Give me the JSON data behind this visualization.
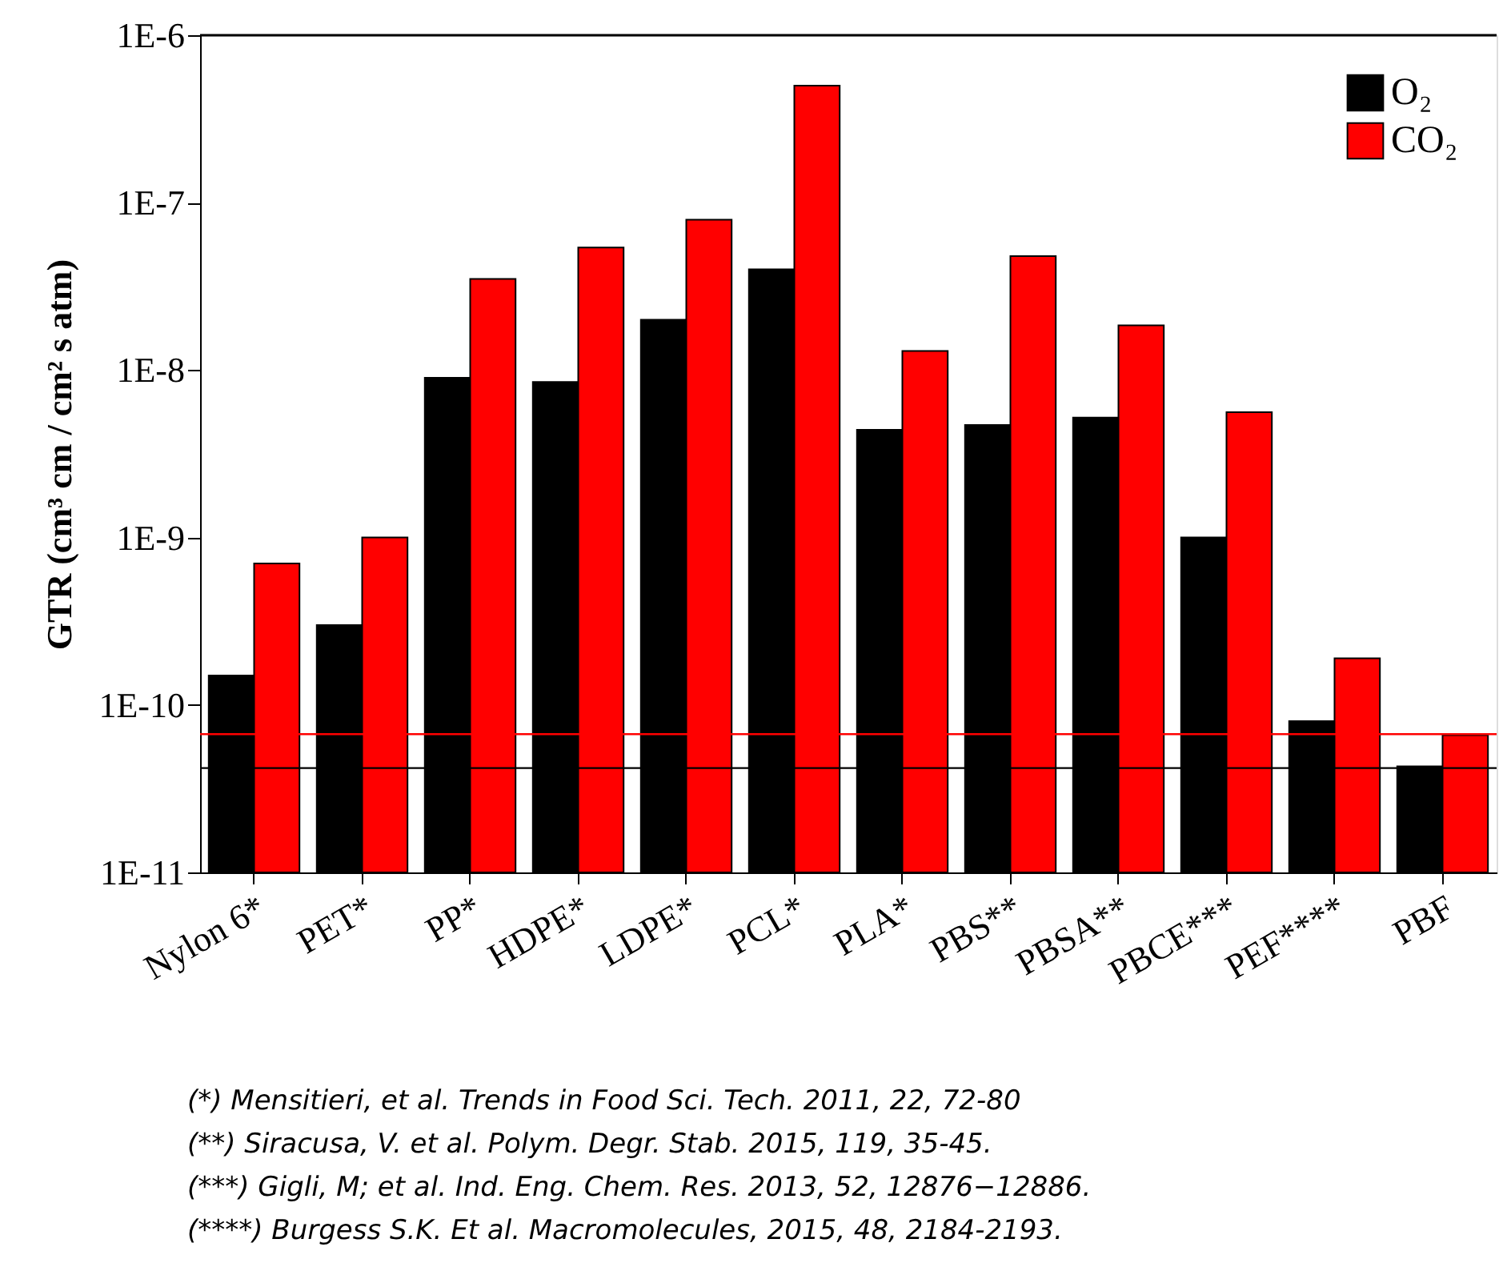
{
  "chart_data": {
    "type": "bar",
    "ylabel": "GTR (cm³ cm / cm² s atm)",
    "categories": [
      "Nylon 6*",
      "PET*",
      "PP*",
      "HDPE*",
      "LDPE*",
      "PCL*",
      "PLA*",
      "PBS**",
      "PBSA**",
      "PBCE***",
      "PEF****",
      "PBF"
    ],
    "series": [
      {
        "name": "O₂",
        "color": "#000000",
        "values": [
          1.5e-10,
          3e-10,
          9e-09,
          8.5e-09,
          2e-08,
          4e-08,
          4.4e-09,
          4.7e-09,
          5.2e-09,
          1e-09,
          8e-11,
          4.3e-11
        ]
      },
      {
        "name": "CO₂",
        "color": "#ff0000",
        "values": [
          7e-10,
          1e-09,
          3.5e-08,
          5.4e-08,
          7.9e-08,
          5e-07,
          1.3e-08,
          4.8e-08,
          1.85e-08,
          5.6e-09,
          1.9e-10,
          6.6e-11
        ]
      }
    ],
    "log": true,
    "ylim": [
      1e-11,
      1e-06
    ],
    "yticks": [
      {
        "value": 1e-11,
        "label": "1E-11"
      },
      {
        "value": 1e-10,
        "label": "1E-10"
      },
      {
        "value": 1e-09,
        "label": "1E-9"
      },
      {
        "value": 1e-08,
        "label": "1E-8"
      },
      {
        "value": 1e-07,
        "label": "1E-7"
      },
      {
        "value": 1e-06,
        "label": "1E-6"
      }
    ],
    "ref_lines": [
      {
        "axis": "y",
        "value": 6.7e-11,
        "color": "#ff0000"
      },
      {
        "axis": "y",
        "value": 4.2e-11,
        "color": "#000000"
      }
    ],
    "legend": "top right",
    "grid": false,
    "annotations": [
      "(*) Mensitieri, et al.  Trends in Food Sci. Tech. 2011, 22, 72-80",
      "(**) Siracusa, V. et al. Polym. Degr. Stab. 2015, 119, 35-45.",
      "(***) Gigli, M; et al. Ind. Eng. Chem. Res. 2013, 52, 12876−12886.",
      "(****) Burgess S.K. Et al. Macromolecules, 2015, 48, 2184-2193."
    ]
  }
}
